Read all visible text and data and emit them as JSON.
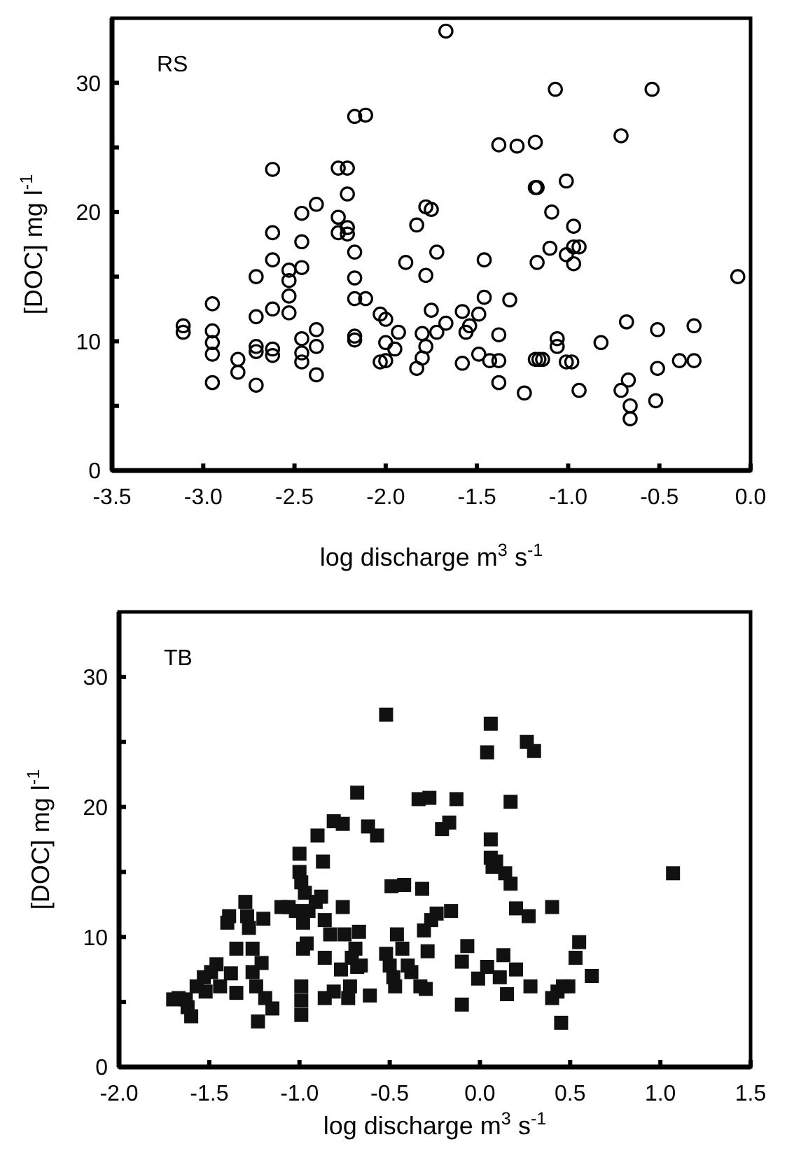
{
  "chart_data": [
    {
      "type": "scatter",
      "xlabel": "log discharge  m$^{3}$ s$^{-1}$",
      "ylabel": "[DOC]  mg l$^{-1}$",
      "annotations": [
        "RS"
      ],
      "marker": "circle",
      "xlim": [
        -3.5,
        0.0
      ],
      "xticks": [
        {
          "value": -3.5,
          "label": "-3.5"
        },
        {
          "value": -3.0,
          "label": "-3.0"
        },
        {
          "value": -2.5,
          "label": "-2.5"
        },
        {
          "value": -2.0,
          "label": "-2.0"
        },
        {
          "value": -1.5,
          "label": "-1.5"
        },
        {
          "value": -1.0,
          "label": "-1.0"
        },
        {
          "value": -0.5,
          "label": "-0.5"
        },
        {
          "value": 0.0,
          "label": "0.0"
        }
      ],
      "ylim": [
        0,
        35
      ],
      "yticks": [
        0,
        {
          "value": 5,
          "label": null
        },
        10,
        {
          "value": 15,
          "label": null
        },
        20,
        {
          "value": 25,
          "label": null
        },
        30
      ],
      "series": [
        {
          "color": "#000000",
          "x": [
            -3.11,
            -3.11,
            -2.95,
            -2.95,
            -2.95,
            -2.95,
            -2.95,
            -2.81,
            -2.81,
            -2.71,
            -2.71,
            -2.71,
            -2.71,
            -2.71,
            -2.62,
            -2.62,
            -2.62,
            -2.62,
            -2.62,
            -2.62,
            -2.53,
            -2.53,
            -2.53,
            -2.53,
            -2.46,
            -2.46,
            -2.46,
            -2.46,
            -2.46,
            -2.46,
            -2.38,
            -2.38,
            -2.38,
            -2.38,
            -2.26,
            -2.26,
            -2.26,
            -2.21,
            -2.21,
            -2.21,
            -2.21,
            -2.17,
            -2.17,
            -2.17,
            -2.17,
            -2.17,
            -2.17,
            -2.11,
            -2.11,
            -2.03,
            -2.0,
            -2.0,
            -2.03,
            -2.0,
            -1.95,
            -1.93,
            -1.89,
            -1.83,
            -1.83,
            -1.8,
            -1.8,
            -1.78,
            -1.75,
            -1.78,
            -1.78,
            -1.75,
            -1.72,
            -1.72,
            -1.67,
            -1.67,
            -1.58,
            -1.58,
            -1.56,
            -1.54,
            -1.49,
            -1.49,
            -1.46,
            -1.46,
            -1.43,
            -1.38,
            -1.38,
            -1.38,
            -1.38,
            -1.32,
            -1.28,
            -1.24,
            -1.18,
            -1.18,
            -1.17,
            -1.17,
            -1.18,
            -1.16,
            -1.14,
            -1.09,
            -1.1,
            -1.07,
            -1.06,
            -1.06,
            -1.01,
            -1.01,
            -1.01,
            -0.98,
            -0.97,
            -0.97,
            -0.94,
            -0.97,
            -0.94,
            -0.82,
            -0.71,
            -0.71,
            -0.68,
            -0.67,
            -0.66,
            -0.66,
            -0.54,
            -0.51,
            -0.51,
            -0.52,
            -0.39,
            -0.31,
            -0.31,
            -0.07
          ],
          "values": [
            11.2,
            10.7,
            12.9,
            10.8,
            9.9,
            9.0,
            6.8,
            8.6,
            7.6,
            15.0,
            11.9,
            9.6,
            9.2,
            6.6,
            23.3,
            18.4,
            16.3,
            12.5,
            9.4,
            8.9,
            15.5,
            14.7,
            13.5,
            12.2,
            19.9,
            17.7,
            15.7,
            10.2,
            9.1,
            8.4,
            20.6,
            10.9,
            9.6,
            7.4,
            23.4,
            19.6,
            18.4,
            23.4,
            21.4,
            18.8,
            18.3,
            16.9,
            14.9,
            13.3,
            10.4,
            10.1,
            27.4,
            27.5,
            13.3,
            12.1,
            11.7,
            9.9,
            8.4,
            8.5,
            9.4,
            10.7,
            16.1,
            19.0,
            7.9,
            10.6,
            8.7,
            20.4,
            20.2,
            15.1,
            9.6,
            12.4,
            16.9,
            10.7,
            11.4,
            34.0,
            12.3,
            8.3,
            10.7,
            11.2,
            12.1,
            9.0,
            16.3,
            13.4,
            8.5,
            8.5,
            10.5,
            6.8,
            25.2,
            13.2,
            25.1,
            6.0,
            25.4,
            21.9,
            21.9,
            16.1,
            8.6,
            8.6,
            8.6,
            20.0,
            17.2,
            29.5,
            10.2,
            9.6,
            22.4,
            16.7,
            8.4,
            8.4,
            18.9,
            17.3,
            17.3,
            16.0,
            6.2,
            9.9,
            25.9,
            6.2,
            11.5,
            7.0,
            5.0,
            4.0,
            29.5,
            10.9,
            7.9,
            5.4,
            8.5,
            8.5,
            11.2,
            15.0
          ]
        }
      ]
    },
    {
      "type": "scatter",
      "xlabel": "log discharge  m$^{3}$ s$^{-1}$",
      "ylabel": "[DOC]  mg l$^{-1}$",
      "annotations": [
        "TB"
      ],
      "marker": "square",
      "xlim": [
        -2.0,
        1.5
      ],
      "xticks": [
        {
          "value": -2.0,
          "label": "-2.0"
        },
        {
          "value": -1.5,
          "label": "-1.5"
        },
        {
          "value": -1.0,
          "label": "-1.0"
        },
        {
          "value": -0.5,
          "label": "-0.5"
        },
        {
          "value": 0.0,
          "label": "0.0"
        },
        {
          "value": 0.5,
          "label": "0.5"
        },
        {
          "value": 1.0,
          "label": "1.0"
        },
        {
          "value": 1.5,
          "label": "1.5"
        }
      ],
      "ylim": [
        0,
        35
      ],
      "yticks": [
        0,
        {
          "value": 5,
          "label": null
        },
        10,
        {
          "value": 15,
          "label": null
        },
        20,
        {
          "value": 25,
          "label": null
        },
        30
      ],
      "series": [
        {
          "color": "#111111",
          "x": [
            -1.7,
            -1.67,
            -1.63,
            -1.6,
            -1.62,
            -1.57,
            -1.53,
            -1.49,
            -1.46,
            -1.52,
            -1.44,
            -1.4,
            -1.39,
            -1.38,
            -1.35,
            -1.35,
            -1.3,
            -1.29,
            -1.28,
            -1.26,
            -1.26,
            -1.24,
            -1.23,
            -1.21,
            -1.2,
            -1.19,
            -1.15,
            -1.1,
            -1.06,
            -1.02,
            -1.0,
            -1.0,
            -0.99,
            -0.97,
            -0.98,
            -0.98,
            -0.99,
            -0.99,
            -0.99,
            -0.96,
            -0.95,
            -0.91,
            -0.9,
            -0.88,
            -0.87,
            -0.86,
            -0.86,
            -0.86,
            -0.83,
            -0.81,
            -0.81,
            -0.77,
            -0.76,
            -0.76,
            -0.75,
            -0.73,
            -0.72,
            -0.71,
            -0.69,
            -0.68,
            -0.68,
            -0.67,
            -0.66,
            -0.62,
            -0.61,
            -0.57,
            -0.52,
            -0.52,
            -0.5,
            -0.49,
            -0.48,
            -0.47,
            -0.46,
            -0.43,
            -0.42,
            -0.4,
            -0.34,
            -0.32,
            -0.38,
            -0.33,
            -0.3,
            -0.29,
            -0.31,
            -0.27,
            -0.24,
            -0.16,
            -0.28,
            -0.13,
            -0.21,
            -0.17,
            -0.1,
            -0.07,
            -0.1,
            -0.01,
            0.04,
            0.06,
            0.04,
            0.06,
            0.06,
            0.07,
            0.09,
            0.14,
            0.17,
            0.13,
            0.11,
            0.15,
            0.2,
            0.17,
            0.2,
            0.26,
            0.3,
            0.27,
            0.28,
            0.4,
            0.4,
            0.43,
            0.46,
            0.49,
            0.45,
            0.53,
            0.55,
            0.62,
            1.07
          ],
          "values": [
            5.2,
            5.3,
            5.2,
            3.9,
            4.6,
            6.2,
            6.9,
            7.3,
            7.9,
            5.8,
            6.2,
            11.1,
            11.6,
            7.2,
            5.7,
            9.1,
            12.7,
            11.6,
            10.7,
            9.1,
            7.3,
            6.2,
            3.5,
            8.0,
            11.4,
            5.3,
            4.5,
            12.3,
            12.3,
            12.0,
            16.4,
            15.0,
            14.2,
            13.4,
            11.1,
            9.1,
            6.2,
            5.1,
            4.0,
            9.5,
            12.0,
            12.7,
            17.8,
            13.1,
            15.8,
            11.3,
            8.4,
            5.3,
            10.2,
            5.8,
            18.9,
            7.5,
            12.3,
            18.7,
            10.2,
            5.3,
            6.2,
            8.4,
            9.1,
            21.1,
            7.7,
            10.4,
            7.8,
            18.5,
            5.5,
            17.8,
            27.1,
            8.7,
            7.8,
            13.9,
            6.9,
            6.2,
            10.2,
            9.1,
            14.0,
            7.8,
            20.6,
            13.7,
            7.3,
            6.2,
            6.0,
            8.9,
            10.5,
            11.3,
            11.8,
            12.0,
            20.7,
            20.6,
            18.3,
            18.8,
            4.8,
            9.3,
            8.1,
            6.8,
            7.7,
            26.4,
            24.2,
            17.5,
            16.1,
            15.4,
            15.8,
            14.9,
            14.1,
            8.6,
            6.9,
            5.6,
            7.5,
            20.4,
            12.2,
            25.0,
            24.3,
            11.6,
            6.2,
            12.3,
            5.3,
            5.8,
            6.2,
            6.2,
            3.4,
            8.4,
            9.6,
            7.0,
            14.9
          ]
        }
      ]
    }
  ]
}
